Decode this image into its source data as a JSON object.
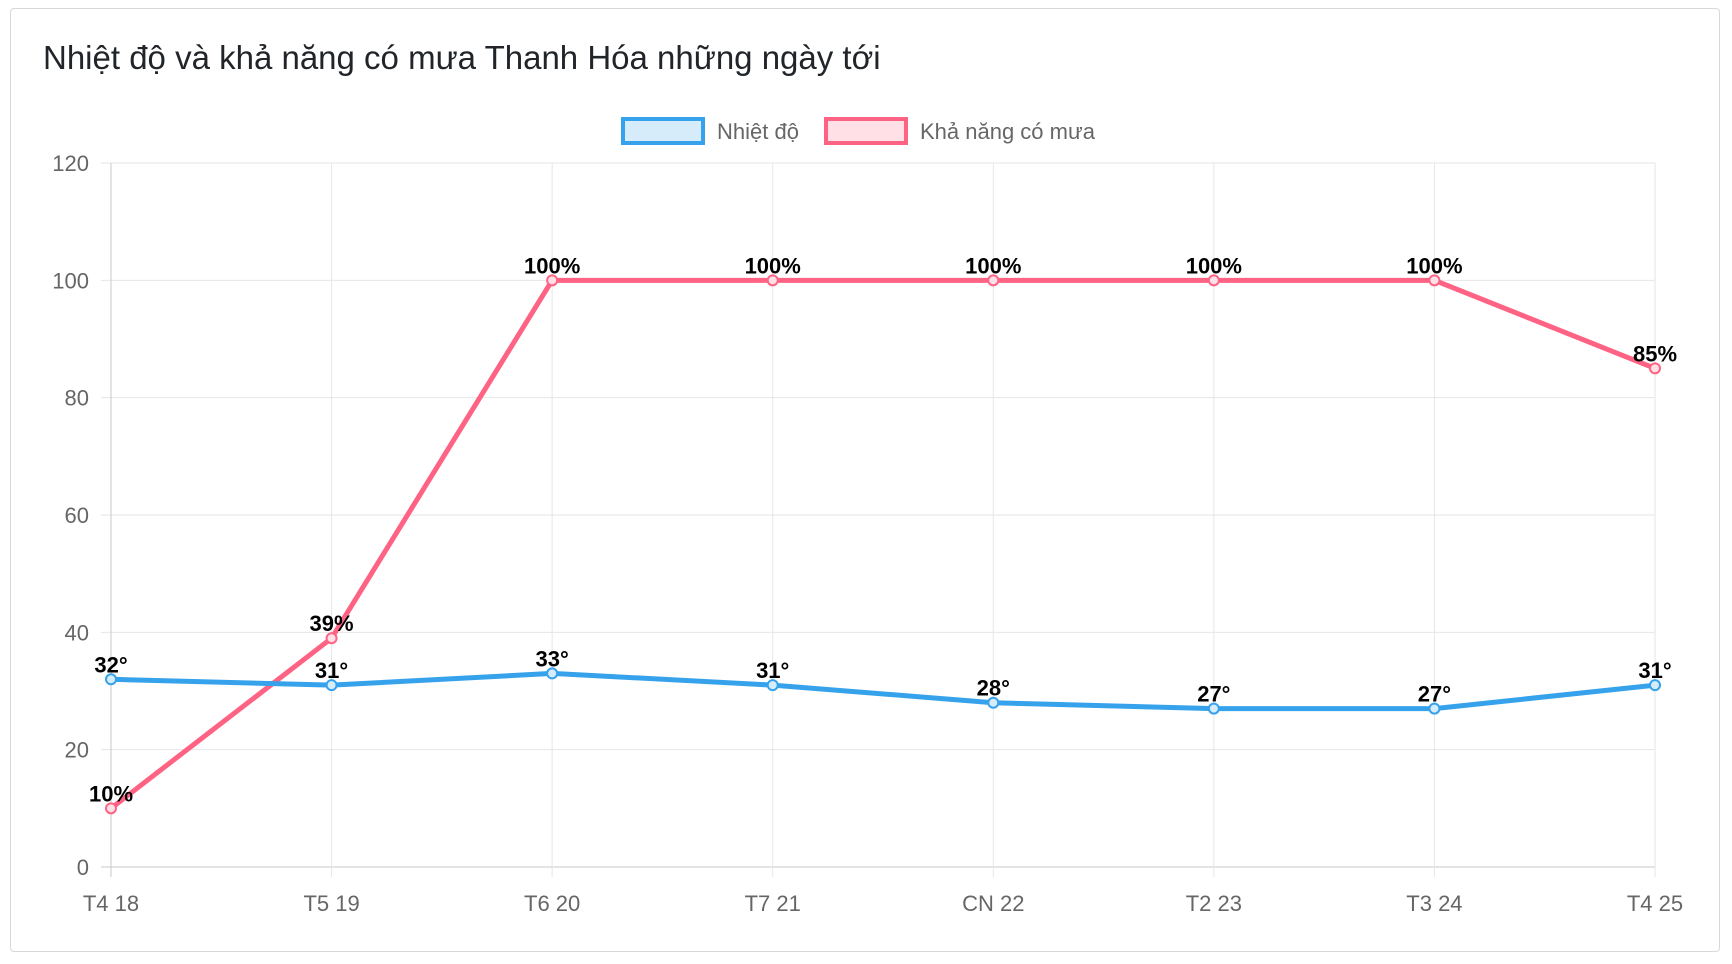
{
  "page": {
    "title": "Nhiệt độ và khả năng có mưa Thanh Hóa những ngày tới"
  },
  "chart_data": {
    "type": "line",
    "title": "Nhiệt độ và khả năng có mưa Thanh Hóa những ngày tới",
    "categories": [
      "T4 18",
      "T5 19",
      "T6 20",
      "T7 21",
      "CN 22",
      "T2 23",
      "T3 24",
      "T4 25"
    ],
    "series": [
      {
        "name": "Nhiệt độ",
        "values": [
          32,
          31,
          33,
          31,
          28,
          27,
          27,
          31
        ],
        "labels": [
          "32°",
          "31°",
          "33°",
          "31°",
          "28°",
          "27°",
          "27°",
          "31°"
        ],
        "color": "#36a2eb",
        "fill": "#d7ecfb"
      },
      {
        "name": "Khả năng có mưa",
        "values": [
          10,
          39,
          100,
          100,
          100,
          100,
          100,
          85
        ],
        "labels": [
          "10%",
          "39%",
          "100%",
          "100%",
          "100%",
          "100%",
          "100%",
          "85%"
        ],
        "color": "#ff6384",
        "fill": "#ffe0e6"
      }
    ],
    "ylim": [
      0,
      120
    ],
    "yticks": [
      "0",
      "20",
      "40",
      "60",
      "80",
      "100",
      "120"
    ],
    "grid": true,
    "legend": "top-center"
  }
}
